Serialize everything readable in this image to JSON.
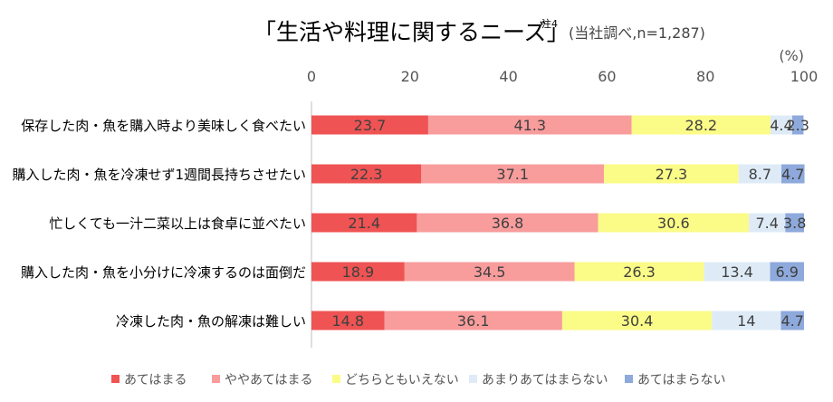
{
  "chart_data": {
    "type": "bar",
    "orientation": "horizontal",
    "stacked": true,
    "title": "「生活や料理に関するニーズ」",
    "title_note": "注4",
    "subtitle": "(当社調べ,n=1,287)",
    "unit_label": "(%)",
    "xlim": [
      0,
      100
    ],
    "x_ticks": [
      "0",
      "20",
      "40",
      "60",
      "80",
      "100"
    ],
    "grid": false,
    "legend_position": "bottom",
    "categories": [
      "保存した肉・魚を購入時より美味しく食べたい",
      "購入した肉・魚を冷凍せず1週間長持ちさせたい",
      "忙しくても一汁二菜以上は食卓に並べたい",
      "購入した肉・魚を小分けに冷凍するのは面倒だ",
      "冷凍した肉・魚の解凍は難しい"
    ],
    "series": [
      {
        "name": "あてはまる",
        "color": "#ef5353",
        "values": [
          23.7,
          22.3,
          21.4,
          18.9,
          14.8
        ],
        "labels": [
          "23.7",
          "22.3",
          "21.4",
          "18.9",
          "14.8"
        ]
      },
      {
        "name": "ややあてはまる",
        "color": "#f89c9c",
        "values": [
          41.3,
          37.1,
          36.8,
          34.5,
          36.1
        ],
        "labels": [
          "41.3",
          "37.1",
          "36.8",
          "34.5",
          "36.1"
        ]
      },
      {
        "name": "どちらともいえない",
        "color": "#fbfb87",
        "values": [
          28.2,
          27.3,
          30.6,
          26.3,
          30.4
        ],
        "labels": [
          "28.2",
          "27.3",
          "30.6",
          "26.3",
          "30.4"
        ]
      },
      {
        "name": "あまりあてはまらない",
        "color": "#deebf7",
        "values": [
          4.4,
          8.7,
          7.4,
          13.4,
          14.0
        ],
        "labels": [
          "4.4",
          "8.7",
          "7.4",
          "13.4",
          "14"
        ]
      },
      {
        "name": "あてはまらない",
        "color": "#8ea9db",
        "values": [
          2.3,
          4.7,
          3.8,
          6.9,
          4.7
        ],
        "labels": [
          "2.3",
          "4.7",
          "3.8",
          "6.9",
          "4.7"
        ]
      }
    ]
  }
}
